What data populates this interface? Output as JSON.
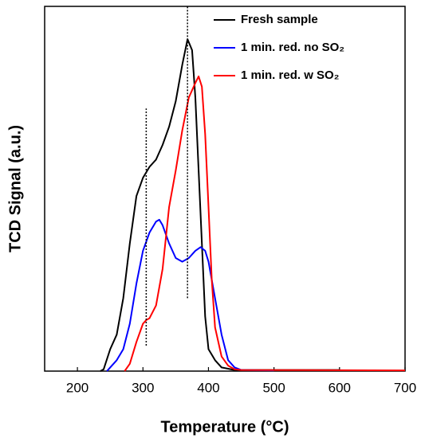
{
  "chart_data": {
    "type": "line",
    "x_label": "Temperature (°C)",
    "y_label": "TCD Signal (a.u.)",
    "xlim": [
      150,
      700
    ],
    "xticks": [
      200,
      300,
      400,
      500,
      600,
      700
    ],
    "ylim": [
      0,
      100
    ],
    "legend": "upper right",
    "vlines": [
      {
        "x": 305,
        "ymin": 7,
        "ymax": 72
      },
      {
        "x": 368,
        "ymin": 20,
        "ymax": 100
      }
    ],
    "series": [
      {
        "name": "Fresh sample",
        "color": "#000000",
        "x": [
          235,
          240,
          250,
          260,
          270,
          280,
          290,
          300,
          310,
          320,
          330,
          340,
          350,
          360,
          368,
          375,
          380,
          385,
          390,
          395,
          400,
          410,
          420,
          440,
          600
        ],
        "values": [
          0,
          0.5,
          6,
          10,
          20,
          35,
          48,
          53,
          56,
          58,
          62,
          67,
          74,
          84,
          91,
          88,
          75,
          55,
          35,
          15,
          6,
          3,
          1,
          0.3,
          0.3
        ]
      },
      {
        "name": "1 min. red. no SO₂",
        "color": "#0000ff",
        "x": [
          245,
          250,
          260,
          270,
          280,
          290,
          300,
          310,
          320,
          325,
          330,
          340,
          350,
          360,
          370,
          380,
          388,
          395,
          400,
          410,
          420,
          430,
          440,
          450,
          500
        ],
        "values": [
          0,
          1,
          3,
          6,
          13,
          24,
          33,
          38,
          41,
          41.5,
          40,
          35,
          31,
          30,
          31,
          33,
          34,
          33,
          30,
          20,
          10,
          3,
          1,
          0.3,
          0.2
        ]
      },
      {
        "name": "1 min. red. w SO₂",
        "color": "#ff0000",
        "x": [
          272,
          280,
          290,
          300,
          305,
          310,
          320,
          330,
          340,
          350,
          360,
          370,
          380,
          385,
          390,
          395,
          400,
          405,
          410,
          420,
          430,
          440,
          450,
          700
        ],
        "values": [
          0,
          2,
          8,
          13,
          14,
          14.5,
          18,
          28,
          45,
          55,
          66,
          75,
          79,
          80.8,
          78,
          65,
          45,
          25,
          12,
          4,
          1.5,
          0.5,
          0.3,
          0.2
        ]
      }
    ]
  }
}
